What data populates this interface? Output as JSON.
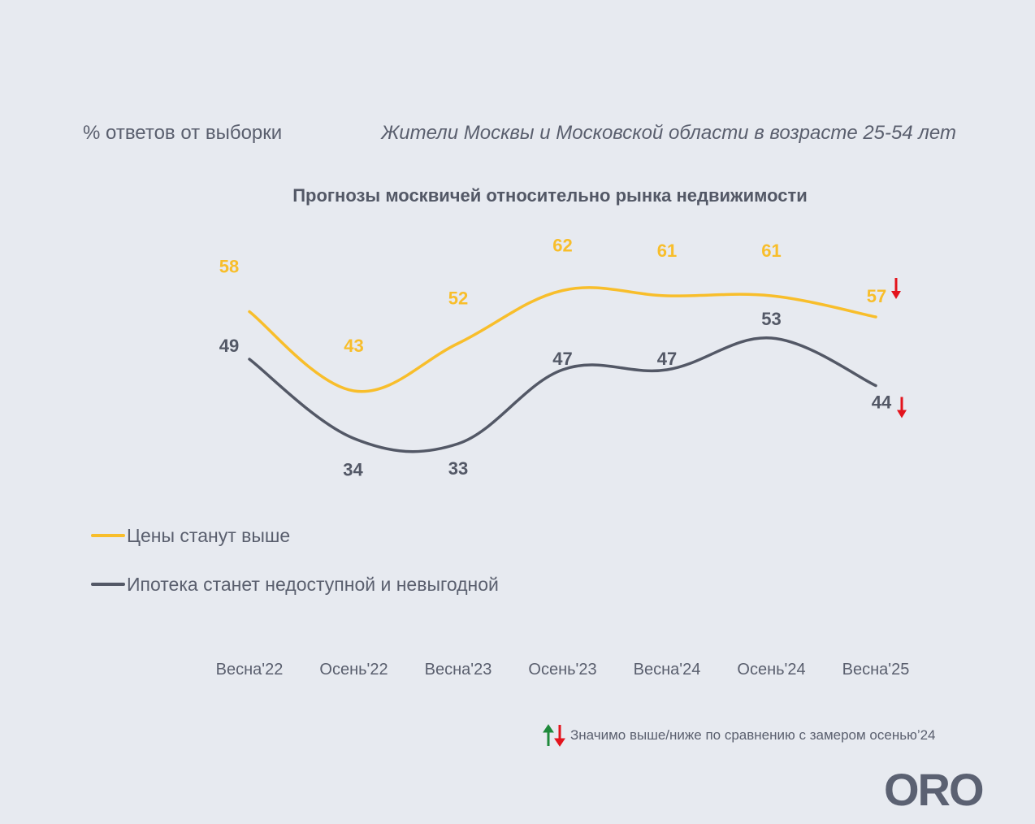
{
  "header": {
    "sample_note": "% ответов от выборки",
    "population": "Жители Москвы и Московской области в возрасте 25-54 лет"
  },
  "legend": {
    "items": [
      {
        "label": "Цены станут выше",
        "color": "#f8be2b"
      },
      {
        "label": "Ипотека станет недоступной и невыгодной",
        "color": "#535866"
      }
    ]
  },
  "significance_note": "Значимо выше/ниже по сравнению с замером осенью’24",
  "logo": "ORO",
  "colors": {
    "down": "#e3141d",
    "up": "#1f8a3b"
  },
  "chart_data": {
    "type": "line",
    "title": "Прогнозы москвичей относительно рынка недвижимости",
    "categories": [
      "Весна'22",
      "Осень'22",
      "Весна'23",
      "Осень'23",
      "Весна'24",
      "Осень'24",
      "Весна'25"
    ],
    "series": [
      {
        "name": "Цены станут выше",
        "values": [
          58,
          43,
          52,
          62,
          61,
          61,
          57
        ],
        "color": "#f8be2b",
        "significance": [
          null,
          null,
          null,
          null,
          null,
          null,
          "down"
        ]
      },
      {
        "name": "Ипотека станет недоступной и невыгодной",
        "values": [
          49,
          34,
          33,
          47,
          47,
          53,
          44
        ],
        "color": "#535866",
        "significance": [
          null,
          null,
          null,
          null,
          null,
          null,
          "down"
        ]
      }
    ],
    "ylim": [
      25,
      70
    ],
    "grid": false,
    "legend_position": "bottom-left"
  }
}
